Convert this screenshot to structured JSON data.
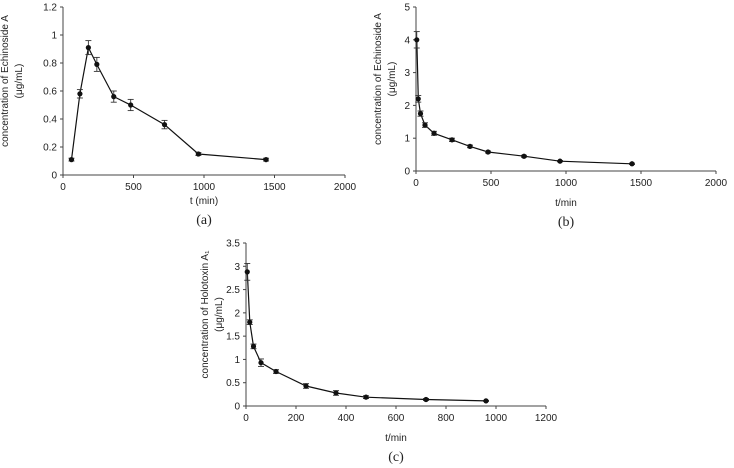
{
  "chart_data": [
    {
      "panel": "(a)",
      "type": "line",
      "xlabel": "t (min)",
      "ylabel": "concentration of Echinoside A",
      "ylabel_unit": "(μg/mL)",
      "xlim": [
        0,
        2000
      ],
      "ylim": [
        0,
        1.2
      ],
      "x_ticks": [
        0,
        500,
        1000,
        1500,
        2000
      ],
      "y_ticks": [
        "0",
        "0.2",
        "0.4",
        "0.6",
        "0.8",
        "1",
        "1.2"
      ],
      "grid": false,
      "series": [
        {
          "x": [
            60,
            120,
            180,
            240,
            360,
            480,
            720,
            960,
            1440
          ],
          "y": [
            0.11,
            0.58,
            0.91,
            0.79,
            0.56,
            0.5,
            0.36,
            0.15,
            0.11
          ],
          "err": [
            0.01,
            0.03,
            0.05,
            0.05,
            0.04,
            0.04,
            0.03,
            0.01,
            0.01
          ]
        }
      ]
    },
    {
      "panel": "(b)",
      "type": "line",
      "xlabel": "t/min",
      "ylabel": "concentration of Echinoside A",
      "ylabel_unit": "(μg/mL)",
      "xlim": [
        0,
        2000
      ],
      "ylim": [
        0,
        5
      ],
      "x_ticks": [
        0,
        500,
        1000,
        1500,
        2000
      ],
      "y_ticks": [
        "0",
        "1",
        "2",
        "3",
        "4",
        "5"
      ],
      "grid": false,
      "series": [
        {
          "x": [
            5,
            15,
            30,
            60,
            120,
            240,
            360,
            480,
            720,
            960,
            1440
          ],
          "y": [
            4.0,
            2.2,
            1.75,
            1.4,
            1.15,
            0.95,
            0.75,
            0.58,
            0.45,
            0.3,
            0.22
          ],
          "err": [
            0.25,
            0.1,
            0.08,
            0.07,
            0.06,
            0.05,
            0.04,
            0.03,
            0.03,
            0.02,
            0.02
          ]
        }
      ]
    },
    {
      "panel": "(c)",
      "type": "line",
      "xlabel": "t/min",
      "ylabel": "concentration of Holotoxin A₁",
      "ylabel_unit": "(μg/mL)",
      "xlim": [
        0,
        1200
      ],
      "ylim": [
        0,
        3.5
      ],
      "x_ticks": [
        0,
        200,
        400,
        600,
        800,
        1000,
        1200
      ],
      "y_ticks": [
        "0",
        "0.5",
        "1",
        "1.5",
        "2",
        "2.5",
        "3",
        "3.5"
      ],
      "grid": false,
      "series": [
        {
          "x": [
            5,
            15,
            30,
            60,
            120,
            240,
            360,
            480,
            720,
            960
          ],
          "y": [
            2.88,
            1.8,
            1.28,
            0.93,
            0.74,
            0.43,
            0.28,
            0.19,
            0.14,
            0.11
          ],
          "err": [
            0.18,
            0.05,
            0.05,
            0.08,
            0.04,
            0.05,
            0.05,
            0.03,
            0.02,
            0.01
          ]
        }
      ]
    }
  ]
}
